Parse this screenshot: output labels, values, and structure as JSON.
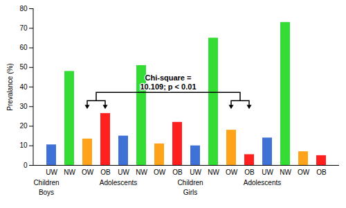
{
  "chart_data": {
    "type": "bar",
    "y_label": "Prevalance (%)",
    "categories": [
      "UW",
      "NW",
      "OW",
      "OB",
      "UW",
      "NW",
      "OW",
      "OB",
      "UW",
      "NW",
      "OW",
      "OB",
      "UW",
      "NW",
      "OW",
      "OB"
    ],
    "values": [
      10.5,
      48,
      13.5,
      26.5,
      15,
      51,
      11,
      22,
      10,
      65,
      18,
      5.5,
      14,
      73,
      7,
      5
    ],
    "colors": [
      "#3f72d6",
      "#33dd33",
      "#ffa31a",
      "#ff1f1f",
      "#3f72d6",
      "#33dd33",
      "#ffa31a",
      "#ff1f1f",
      "#3f72d6",
      "#33dd33",
      "#ffa31a",
      "#ff1f1f",
      "#3f72d6",
      "#33dd33",
      "#ffa31a",
      "#ff1f1f"
    ],
    "groups": [
      "Children",
      "Adolescents",
      "Children",
      "Adolescents"
    ],
    "supergroups": [
      "Boys",
      "Girls"
    ],
    "annotations": [
      "Chi-square =",
      "10.109; p < 0.01"
    ],
    "ylim": [
      0,
      80
    ],
    "yticks": [
      0,
      10,
      20,
      30,
      40,
      50,
      60,
      70,
      80
    ],
    "grid": false
  }
}
